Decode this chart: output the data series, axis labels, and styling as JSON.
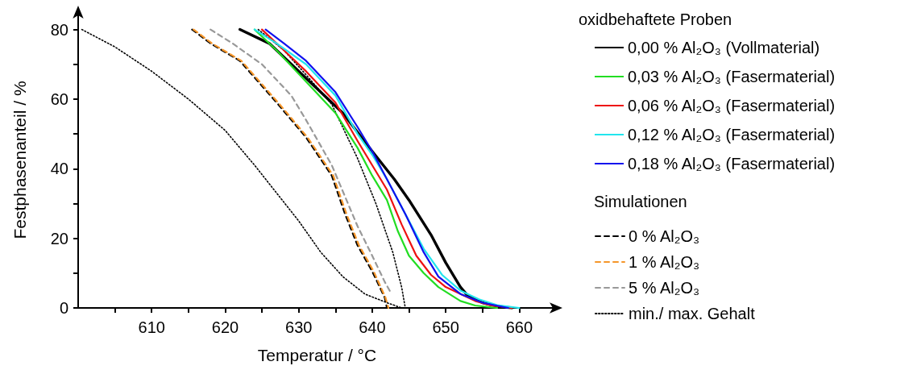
{
  "chart_data": {
    "type": "line",
    "xlabel": "Temperatur / °C",
    "ylabel": "Festphasenanteil / %",
    "legend_title": "oxidbehaftete Proben",
    "annotations": [
      "Simulationen"
    ],
    "legend": "right",
    "marker": "none",
    "xlim": [
      600,
      665
    ],
    "ylim": [
      0,
      85
    ],
    "xticks": [
      {
        "value": 605,
        "label": null
      },
      610,
      {
        "value": 615,
        "label": null
      },
      620,
      {
        "value": 625,
        "label": null
      },
      630,
      {
        "value": 635,
        "label": null
      },
      640,
      {
        "value": 645,
        "label": null
      },
      650,
      {
        "value": 655,
        "label": null
      },
      660
    ],
    "yticks": [
      0,
      {
        "value": 10,
        "label": null
      },
      20,
      {
        "value": 30,
        "label": null
      },
      40,
      {
        "value": 50,
        "label": null
      },
      60,
      {
        "value": 70,
        "label": null
      },
      80
    ],
    "series": [
      {
        "name": "0,00 % Al₂O₃ (Vollmaterial)",
        "color": "#000000",
        "line_style": "solid",
        "x": [
          622,
          626,
          631,
          636,
          640,
          643,
          645,
          648,
          650,
          652,
          653,
          655,
          657,
          659
        ],
        "values": [
          80,
          76,
          66,
          56,
          45,
          37,
          31,
          21,
          13,
          6,
          3.5,
          1.5,
          0.5,
          0
        ]
      },
      {
        "name": "0,03 % Al₂O₃ (Fasermaterial)",
        "color": "#22dd22",
        "line_style": "solid",
        "x": [
          624,
          627,
          631,
          635,
          638,
          640,
          642,
          643.5,
          645,
          647,
          649,
          652,
          654,
          657
        ],
        "values": [
          80,
          74,
          65,
          56,
          46,
          38,
          31,
          22,
          15,
          10,
          6,
          2,
          0.7,
          0
        ]
      },
      {
        "name": "0,06 % Al₂O₃ (Fasermaterial)",
        "color": "#ee1111",
        "line_style": "solid",
        "x": [
          625,
          628,
          631,
          635,
          638,
          640,
          642,
          644,
          646,
          648,
          650,
          654,
          656,
          659
        ],
        "values": [
          80,
          74,
          68,
          59,
          48,
          41,
          34,
          24,
          15,
          9.5,
          6,
          2,
          0.8,
          0
        ]
      },
      {
        "name": "0,12 % Al₂O₃ (Fasermaterial)",
        "color": "#22e5ee",
        "line_style": "solid",
        "x": [
          624,
          627,
          631,
          635,
          638,
          640,
          642,
          644.5,
          647,
          649.5,
          652,
          654.5,
          657,
          660
        ],
        "values": [
          80,
          76,
          70,
          61,
          50,
          44,
          37,
          27,
          17,
          9.5,
          5,
          2.5,
          0.8,
          0
        ]
      },
      {
        "name": "0,18 % Al₂O₃ (Fasermaterial)",
        "color": "#1111ee",
        "line_style": "solid",
        "x": [
          625.5,
          628,
          631,
          635,
          638,
          640,
          642,
          644.5,
          647,
          649,
          652,
          655,
          658.5
        ],
        "values": [
          80,
          76,
          71,
          62,
          52,
          45,
          37,
          27,
          16,
          9,
          4,
          1.5,
          0
        ]
      },
      {
        "name": "0 % Al₂O₃",
        "color": "#000000",
        "line_style": "dashed",
        "x": [
          615.5,
          618,
          622,
          627,
          631,
          634.5,
          636.3,
          638,
          640,
          641.7,
          642
        ],
        "values": [
          80,
          76,
          71,
          59,
          49,
          38,
          27,
          18,
          10.5,
          3,
          0
        ]
      },
      {
        "name": "1 % Al₂O₃",
        "color": "#f5962a",
        "line_style": "dashed",
        "x": [
          615.7,
          618.2,
          622.2,
          627.2,
          631.2,
          634.7,
          636.5,
          638.2,
          640.2,
          641.8,
          642.2
        ],
        "values": [
          80,
          76,
          71,
          59,
          49,
          38,
          27,
          18,
          10.5,
          3,
          0
        ]
      },
      {
        "name": "5 % Al₂O₃",
        "color": "#999999",
        "line_style": "dashed",
        "x": [
          618,
          621,
          625,
          629,
          631,
          634.5,
          638,
          640,
          641.7,
          642.5
        ],
        "values": [
          80,
          76,
          70,
          61,
          54,
          41,
          23.5,
          15,
          7.5,
          4.5
        ]
      },
      {
        "name": "min./ max. Gehalt",
        "color": "#000000",
        "line_style": "dotted",
        "x": [
          600.5,
          605,
          610,
          615,
          620,
          624,
          627,
          630,
          633,
          636,
          639,
          642,
          644
        ],
        "values": [
          80,
          75,
          68,
          60,
          51,
          41,
          33,
          25,
          16,
          9,
          4,
          1.5,
          0
        ]
      },
      {
        "color": "#000000",
        "line_style": "dotted",
        "x": [
          624.5,
          628,
          631,
          634.5,
          638,
          640.5,
          642.8,
          644,
          644.5
        ],
        "values": [
          80,
          74,
          67,
          58.5,
          43,
          30,
          16,
          6,
          0
        ]
      }
    ]
  }
}
